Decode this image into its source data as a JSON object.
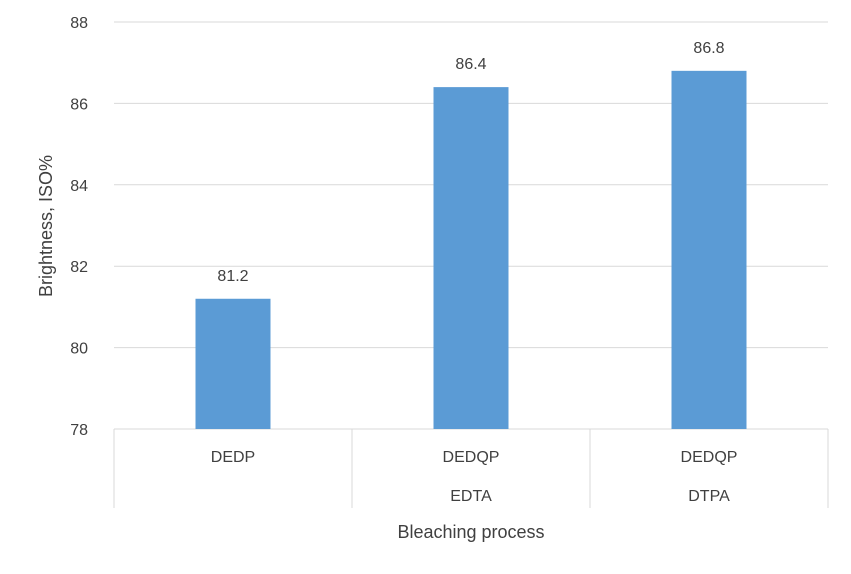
{
  "chart_data": {
    "type": "bar",
    "categories": [
      {
        "level1": "DEDP",
        "level2": ""
      },
      {
        "level1": "DEDQP",
        "level2": "EDTA"
      },
      {
        "level1": "DEDQP",
        "level2": "DTPA"
      }
    ],
    "values": [
      81.2,
      86.4,
      86.8
    ],
    "data_labels": [
      "81.2",
      "86.4",
      "86.8"
    ],
    "title": "",
    "xlabel": "Bleaching process",
    "ylabel": "Brightness, ISO%",
    "ylim": [
      78,
      88
    ],
    "yticks": [
      78,
      80,
      82,
      84,
      86,
      88
    ],
    "grid": true,
    "legend": "none",
    "colors": {
      "bar": "#5b9bd5",
      "grid": "#d9d9d9",
      "text": "#404040"
    }
  }
}
